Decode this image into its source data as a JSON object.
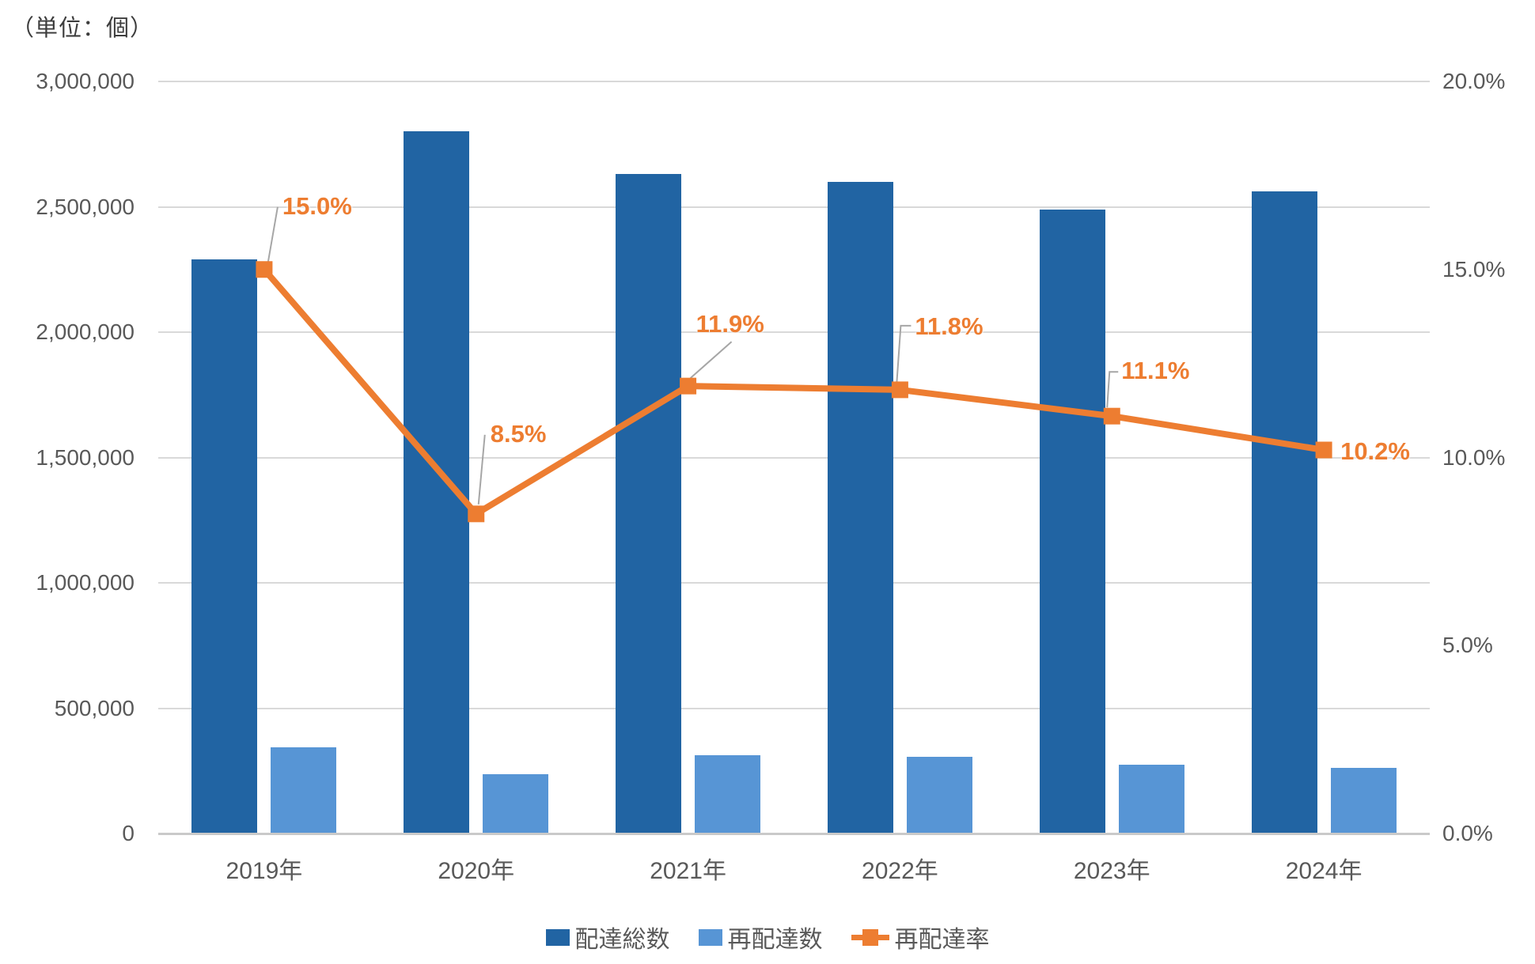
{
  "chart_data": {
    "type": "bar",
    "subtype": "combo-bar-line-dual-axis",
    "unit_label": "（単位：個）",
    "categories": [
      "2019年",
      "2020年",
      "2021年",
      "2022年",
      "2023年",
      "2024年"
    ],
    "series": [
      {
        "name": "配達総数",
        "type": "bar",
        "axis": "left",
        "color": "#2164a3",
        "values": [
          2290000,
          2800000,
          2630000,
          2600000,
          2490000,
          2560000
        ]
      },
      {
        "name": "再配達数",
        "type": "bar",
        "axis": "left",
        "color": "#5795d5",
        "values": [
          343500,
          238000,
          313000,
          307000,
          276000,
          261000
        ]
      },
      {
        "name": "再配達率",
        "type": "line",
        "axis": "right",
        "color": "#ed7d31",
        "values": [
          15.0,
          8.5,
          11.9,
          11.8,
          11.1,
          10.2
        ],
        "point_labels": [
          "15.0%",
          "8.5%",
          "11.9%",
          "11.8%",
          "11.1%",
          "10.2%"
        ]
      }
    ],
    "left_axis": {
      "min": 0,
      "max": 3000000,
      "tick_labels": [
        "3,000,000",
        "2,500,000",
        "2,000,000",
        "1,500,000",
        "1,000,000",
        "500,000",
        "0"
      ]
    },
    "right_axis": {
      "min": 0,
      "max": 20,
      "tick_labels": [
        "20.0%",
        "15.0%",
        "10.0%",
        "5.0%",
        "0.0%"
      ]
    },
    "grid": true,
    "legend_position": "bottom",
    "colors": {
      "gridline": "#d9d9d9",
      "axis_line": "#c9c9c9",
      "axis_text": "#595959",
      "leader_line": "#a6a6a6",
      "data_label": "#ed7d31"
    }
  }
}
